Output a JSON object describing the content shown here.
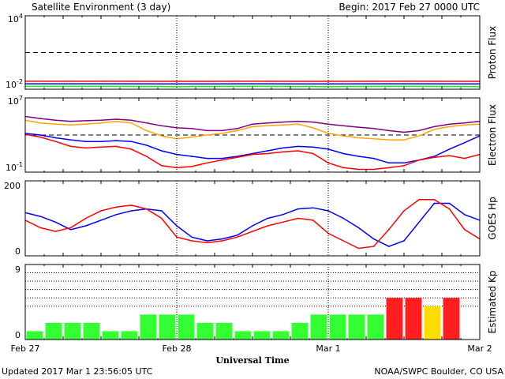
{
  "header": {
    "title": "Satellite Environment (3 day)",
    "begin": "Begin:  2017 Feb 27 0000 UTC"
  },
  "footer": {
    "updated": "Updated 2017 Mar  1 23:56:05 UTC",
    "credit": "NOAA/SWPC Boulder, CO USA"
  },
  "x_axis": {
    "title": "Universal Time",
    "ticks": [
      "Feb 27",
      "Feb 28",
      "Mar 1",
      "Mar 2"
    ]
  },
  "colors": {
    "red": "#ff0000",
    "blue": "#0000ff",
    "green": "#00ff00",
    "orange": "#ffa500",
    "purple": "#800080",
    "kp_green": "#33ff33",
    "kp_red": "#ff1f1f",
    "kp_yellow": "#ffdd00"
  },
  "chart_data": [
    {
      "type": "line",
      "panel": "proton",
      "ylabel": "Proton Flux",
      "y_scale": "log",
      "ylim": [
        0.01,
        10000
      ],
      "y_ticks": [
        {
          "base": "10",
          "exp": "4",
          "value": 10000
        },
        {
          "base": "10",
          "exp": "-2",
          "value": 0.01
        }
      ],
      "reference_lines": [
        10
      ],
      "x": [
        0,
        0.5,
        1,
        1.5,
        2,
        2.5,
        3
      ],
      "series": [
        {
          "color": "red",
          "values": [
            0.045,
            0.045,
            0.044,
            0.045,
            0.044,
            0.045,
            0.044
          ]
        },
        {
          "color": "blue",
          "values": [
            0.028,
            0.028,
            0.027,
            0.028,
            0.027,
            0.028,
            0.027
          ]
        },
        {
          "color": "green",
          "values": [
            0.017,
            0.017,
            0.016,
            0.017,
            0.016,
            0.017,
            0.016
          ]
        }
      ]
    },
    {
      "type": "line",
      "panel": "electron",
      "ylabel": "Electron Flux",
      "y_scale": "log",
      "ylim": [
        0.1,
        10000000
      ],
      "y_ticks": [
        {
          "base": "10",
          "exp": "7",
          "value": 10000000
        },
        {
          "base": "10",
          "exp": "-1",
          "value": 0.1
        }
      ],
      "reference_lines": [
        1000
      ],
      "x": [
        0,
        0.1,
        0.2,
        0.3,
        0.4,
        0.5,
        0.6,
        0.7,
        0.8,
        0.9,
        1.0,
        1.1,
        1.2,
        1.3,
        1.4,
        1.5,
        1.6,
        1.7,
        1.8,
        1.9,
        2.0,
        2.1,
        2.2,
        2.3,
        2.4,
        2.5,
        2.6,
        2.7,
        2.8,
        2.9,
        3.0
      ],
      "series": [
        {
          "color": "purple",
          "values": [
            100000,
            60000,
            40000,
            30000,
            35000,
            40000,
            50000,
            40000,
            20000,
            10000,
            6000,
            5000,
            3000,
            3000,
            5000,
            15000,
            20000,
            25000,
            30000,
            25000,
            15000,
            10000,
            7000,
            5000,
            3000,
            2000,
            3000,
            8000,
            15000,
            20000,
            30000
          ]
        },
        {
          "color": "orange",
          "values": [
            40000,
            20000,
            15000,
            12000,
            15000,
            20000,
            30000,
            20000,
            3000,
            800,
            400,
            600,
            1000,
            1500,
            3000,
            8000,
            10000,
            12000,
            15000,
            6000,
            1500,
            800,
            500,
            400,
            300,
            300,
            800,
            4000,
            8000,
            12000,
            15000
          ]
        },
        {
          "color": "blue",
          "values": [
            1500,
            1000,
            500,
            300,
            200,
            200,
            250,
            200,
            80,
            20,
            8,
            5,
            3,
            3,
            5,
            10,
            20,
            40,
            60,
            50,
            30,
            10,
            5,
            3,
            1,
            1,
            2,
            5,
            30,
            150,
            800
          ]
        },
        {
          "color": "red",
          "values": [
            1200,
            600,
            200,
            60,
            40,
            50,
            60,
            30,
            5,
            0.5,
            0.3,
            0.4,
            1,
            2,
            4,
            8,
            10,
            15,
            20,
            10,
            1,
            0.3,
            0.2,
            0.2,
            0.3,
            0.5,
            2,
            4,
            6,
            3,
            8
          ]
        }
      ]
    },
    {
      "type": "line",
      "panel": "hp",
      "ylabel": "GOES Hp",
      "y_scale": "linear",
      "ylim": [
        0,
        200
      ],
      "y_ticks": [
        {
          "label": "200",
          "value": 200
        },
        {
          "label": "0",
          "value": 0
        }
      ],
      "x": [
        0,
        0.1,
        0.2,
        0.3,
        0.4,
        0.5,
        0.6,
        0.7,
        0.8,
        0.9,
        1.0,
        1.1,
        1.2,
        1.3,
        1.4,
        1.5,
        1.6,
        1.7,
        1.8,
        1.9,
        2.0,
        2.1,
        2.2,
        2.3,
        2.4,
        2.5,
        2.6,
        2.7,
        2.8,
        2.9,
        3.0
      ],
      "series": [
        {
          "color": "blue",
          "values": [
            115,
            105,
            90,
            70,
            80,
            95,
            110,
            120,
            125,
            120,
            80,
            50,
            40,
            45,
            55,
            80,
            100,
            110,
            125,
            128,
            120,
            100,
            75,
            45,
            25,
            40,
            90,
            140,
            140,
            110,
            95
          ]
        },
        {
          "color": "red",
          "values": [
            95,
            75,
            65,
            75,
            100,
            120,
            130,
            135,
            125,
            100,
            50,
            40,
            35,
            40,
            50,
            65,
            80,
            90,
            100,
            95,
            60,
            40,
            20,
            25,
            70,
            120,
            150,
            150,
            125,
            70,
            45
          ]
        }
      ]
    },
    {
      "type": "bar",
      "panel": "kp",
      "ylabel": "Estimated Kp",
      "ylim": [
        0,
        9
      ],
      "y_ticks": [
        {
          "label": "9",
          "value": 9
        },
        {
          "label": "0",
          "value": 0
        }
      ],
      "dotted_lines": [
        4,
        5,
        6,
        7,
        8
      ],
      "bar_hours": 3,
      "values": [
        1,
        2,
        2,
        2,
        1,
        1,
        3,
        3,
        3,
        2,
        2,
        1,
        1,
        1,
        2,
        3,
        3,
        3,
        3,
        5,
        5,
        4,
        5
      ],
      "bar_colors": [
        "kp_green",
        "kp_green",
        "kp_green",
        "kp_green",
        "kp_green",
        "kp_green",
        "kp_green",
        "kp_green",
        "kp_green",
        "kp_green",
        "kp_green",
        "kp_green",
        "kp_green",
        "kp_green",
        "kp_green",
        "kp_green",
        "kp_green",
        "kp_green",
        "kp_green",
        "kp_red",
        "kp_red",
        "kp_yellow",
        "kp_red"
      ]
    }
  ]
}
